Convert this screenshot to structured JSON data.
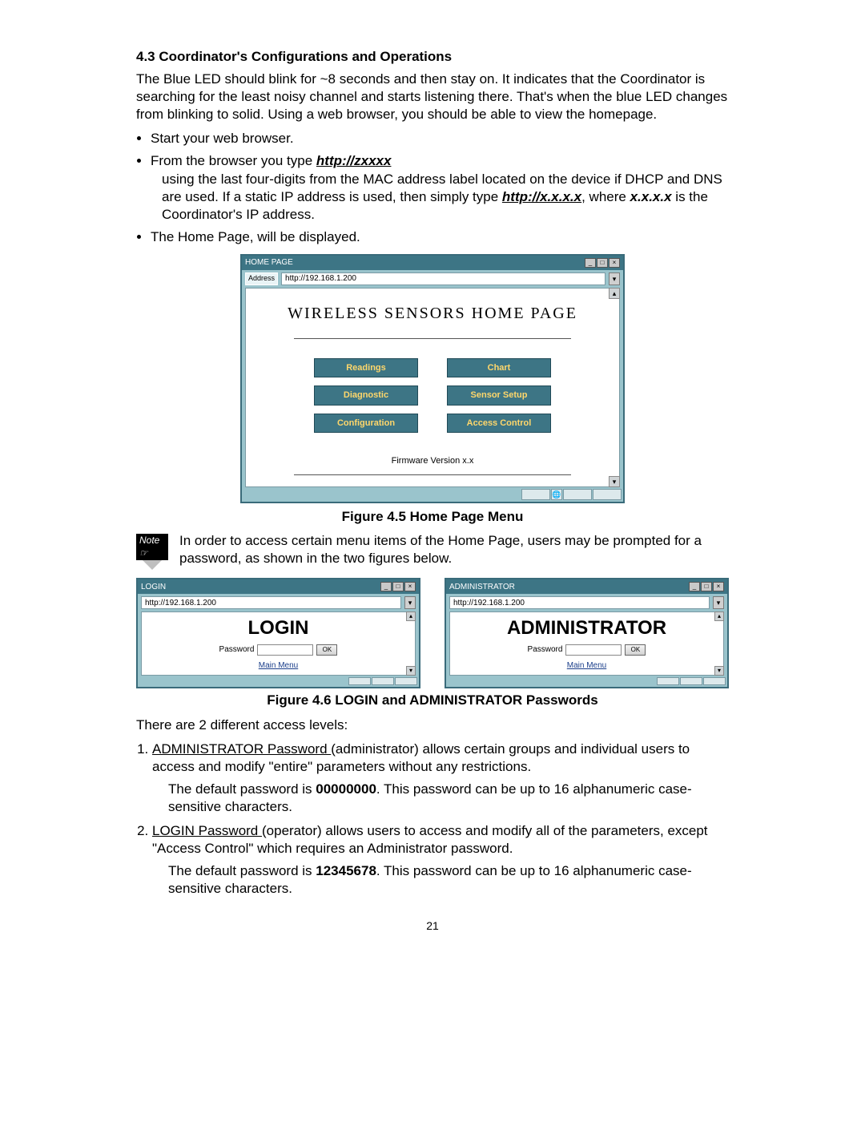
{
  "doc": {
    "section_heading": "4.3  Coordinator's Configurations and Operations",
    "para1": "The Blue LED should blink for ~8 seconds and then stay on. It indicates that the Coordinator is searching for the least noisy channel and starts listening there. That's when the blue LED changes from blinking to solid.  Using a web browser, you should be able to view the homepage.",
    "bullets": {
      "b1": "Start your web browser.",
      "b2_pre": "From the browser you type ",
      "b2_url1": "http://zxxxx",
      "b2_mid": " using the last four-digits from the MAC address label located on the device if DHCP and DNS are used.  If a static IP address is used, then simply type ",
      "b2_url2": "http://x.x.x.x",
      "b2_post1": ", where ",
      "b2_var": "x.x.x.x",
      "b2_post2": "  is the Coordinator's IP address.",
      "b3": "The Home Page, will be displayed."
    },
    "fig45": "Figure 4.5  Home Page Menu",
    "note_text": "In order to access certain menu items of the Home Page, users may be prompted for a password, as shown in the two figures below.",
    "fig46": "Figure 4.6  LOGIN and ADMINISTRATOR Passwords",
    "levels_intro": "There are 2 different access levels:",
    "lvl1_a": "ADMINISTRATOR Password ",
    "lvl1_b": "(administrator) allows certain groups and individual users to access and modify \"entire\" parameters without any restrictions.",
    "lvl1_default_a": "The default password is ",
    "lvl1_default_pw": "00000000",
    "lvl1_default_b": ".  This password can be up to 16 alphanumeric case-sensitive characters.",
    "lvl2_a": "LOGIN Password ",
    "lvl2_b": "(operator) allows users to access and modify all of the parameters, except \"Access Control\" which requires an Administrator password.",
    "lvl2_default_a": "The default password is ",
    "lvl2_default_pw": "12345678",
    "lvl2_default_b": ".  This password can be up to 16 alphanumeric case-sensitive characters.",
    "page_number": "21",
    "note_label": "Note ☞"
  },
  "homewin": {
    "title": "HOME PAGE",
    "address_label": "Address",
    "address_value": "http://192.168.1.200",
    "page_title": "WIRELESS SENSORS HOME PAGE",
    "buttons": {
      "readings": "Readings",
      "chart": "Chart",
      "diagnostic": "Diagnostic",
      "sensor_setup": "Sensor Setup",
      "configuration": "Configuration",
      "access_control": "Access Control"
    },
    "firmware": "Firmware Version x.x",
    "colors": {
      "frame": "#9ac4cc",
      "titlebar": "#3d7585",
      "button_bg": "#3d7585",
      "button_fg": "#ffd76b"
    }
  },
  "loginwin": {
    "title": "LOGIN",
    "address": "http://192.168.1.200",
    "big_title": "LOGIN",
    "pw_label": "Password",
    "ok": "OK",
    "main_menu": "Main Menu"
  },
  "adminwin": {
    "title": "ADMINISTRATOR",
    "address": "http://192.168.1.200",
    "big_title": "ADMINISTRATOR",
    "pw_label": "Password",
    "ok": "OK",
    "main_menu": "Main Menu"
  }
}
